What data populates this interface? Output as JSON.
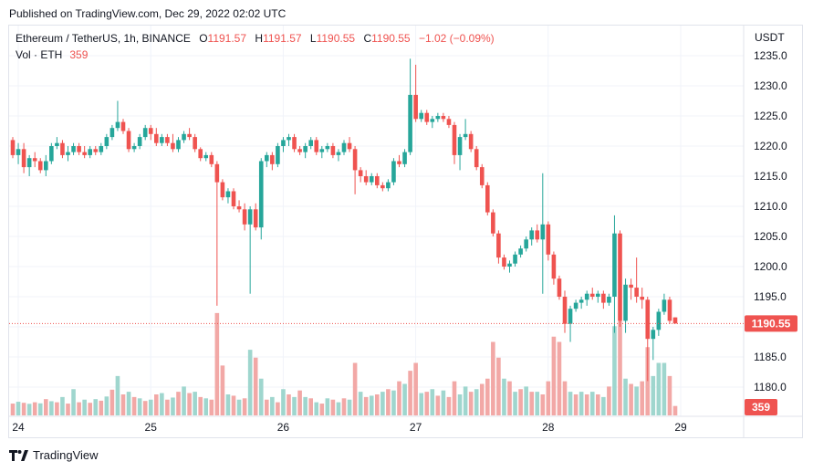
{
  "published": "Published on TradingView.com, Dec 29, 2022 02:02 UTC",
  "legend": {
    "symbol": "Ethereum / TetherUS, 1h, BINANCE",
    "open_label": "O",
    "open": "1191.57",
    "high_label": "H",
    "high": "1191.57",
    "low_label": "L",
    "low": "1190.55",
    "close_label": "C",
    "close": "1190.55",
    "change": "−1.02 (−0.09%)",
    "vol_label": "Vol · ETH",
    "vol_value": "359"
  },
  "footer": {
    "brand": "TradingView"
  },
  "colors": {
    "up": "#26a69a",
    "down": "#ef5350",
    "up_vol": "#9fd6ce",
    "down_vol": "#f2a8a6",
    "grid": "#f0f3fa"
  },
  "chart_data": {
    "type": "candlestick",
    "currency_label": "USDT",
    "y_ticks": [
      1180,
      1185,
      1190,
      1195,
      1200,
      1205,
      1210,
      1215,
      1220,
      1225,
      1230,
      1235
    ],
    "ylim": [
      1176.9,
      1237.3
    ],
    "x_ticks": [
      {
        "index": 0,
        "label": "24"
      },
      {
        "index": 24,
        "label": "25"
      },
      {
        "index": 48,
        "label": "26"
      },
      {
        "index": 72,
        "label": "27"
      },
      {
        "index": 96,
        "label": "28"
      },
      {
        "index": 120,
        "label": "29"
      }
    ],
    "last_price": "1190.55",
    "last_volume": "359",
    "candles": [
      [
        1221.0,
        1221.5,
        1218.0,
        1218.5
      ],
      [
        1218.5,
        1220.5,
        1217.0,
        1219.5
      ],
      [
        1219.5,
        1220.5,
        1215.5,
        1216.5
      ],
      [
        1216.5,
        1218.5,
        1215.0,
        1218.0
      ],
      [
        1218.0,
        1219.0,
        1216.5,
        1217.5
      ],
      [
        1217.5,
        1218.0,
        1215.5,
        1216.0
      ],
      [
        1216.0,
        1218.5,
        1215.0,
        1217.5
      ],
      [
        1217.5,
        1220.5,
        1217.0,
        1220.0
      ],
      [
        1220.0,
        1221.5,
        1219.5,
        1220.5
      ],
      [
        1220.5,
        1221.0,
        1218.0,
        1218.5
      ],
      [
        1218.5,
        1220.0,
        1217.5,
        1219.0
      ],
      [
        1219.0,
        1220.5,
        1218.5,
        1220.0
      ],
      [
        1220.0,
        1220.5,
        1218.5,
        1219.0
      ],
      [
        1219.0,
        1220.0,
        1218.0,
        1218.5
      ],
      [
        1218.5,
        1220.0,
        1218.0,
        1219.5
      ],
      [
        1219.5,
        1220.0,
        1218.5,
        1219.0
      ],
      [
        1219.0,
        1220.5,
        1218.5,
        1220.0
      ],
      [
        1220.0,
        1222.0,
        1219.5,
        1221.5
      ],
      [
        1221.5,
        1223.5,
        1221.0,
        1223.0
      ],
      [
        1223.0,
        1227.5,
        1222.5,
        1224.0
      ],
      [
        1224.0,
        1224.5,
        1222.0,
        1222.5
      ],
      [
        1222.5,
        1223.0,
        1219.0,
        1219.5
      ],
      [
        1219.5,
        1220.5,
        1219.0,
        1220.0
      ],
      [
        1220.0,
        1222.0,
        1219.5,
        1221.5
      ],
      [
        1221.5,
        1223.5,
        1221.0,
        1223.0
      ],
      [
        1223.0,
        1223.5,
        1221.0,
        1222.0
      ],
      [
        1222.0,
        1223.0,
        1220.0,
        1220.5
      ],
      [
        1220.5,
        1222.0,
        1220.0,
        1221.5
      ],
      [
        1221.5,
        1222.0,
        1220.0,
        1220.5
      ],
      [
        1220.5,
        1222.0,
        1219.0,
        1219.5
      ],
      [
        1219.5,
        1221.5,
        1219.0,
        1221.0
      ],
      [
        1221.0,
        1222.5,
        1220.5,
        1222.0
      ],
      [
        1222.0,
        1223.0,
        1221.0,
        1221.5
      ],
      [
        1221.5,
        1222.0,
        1219.0,
        1219.5
      ],
      [
        1219.5,
        1219.8,
        1217.5,
        1218.0
      ],
      [
        1218.0,
        1219.0,
        1217.5,
        1218.5
      ],
      [
        1218.5,
        1219.0,
        1216.5,
        1217.0
      ],
      [
        1217.0,
        1217.5,
        1193.5,
        1214.0
      ],
      [
        1214.0,
        1214.5,
        1211.0,
        1211.5
      ],
      [
        1211.5,
        1213.0,
        1210.5,
        1212.5
      ],
      [
        1212.5,
        1213.0,
        1209.5,
        1210.0
      ],
      [
        1210.0,
        1211.0,
        1209.0,
        1209.5
      ],
      [
        1209.5,
        1210.5,
        1206.0,
        1207.0
      ],
      [
        1207.0,
        1210.0,
        1195.5,
        1209.5
      ],
      [
        1209.5,
        1210.5,
        1206.0,
        1206.5
      ],
      [
        1206.5,
        1218.0,
        1204.5,
        1217.5
      ],
      [
        1217.5,
        1219.0,
        1216.5,
        1218.5
      ],
      [
        1218.5,
        1219.0,
        1216.0,
        1217.0
      ],
      [
        1217.0,
        1220.5,
        1216.5,
        1220.0
      ],
      [
        1220.0,
        1221.5,
        1219.0,
        1221.0
      ],
      [
        1221.0,
        1222.0,
        1220.0,
        1221.5
      ],
      [
        1221.5,
        1222.0,
        1219.0,
        1219.5
      ],
      [
        1219.5,
        1220.0,
        1218.5,
        1219.0
      ],
      [
        1219.0,
        1220.5,
        1218.0,
        1220.0
      ],
      [
        1220.0,
        1221.5,
        1219.5,
        1221.0
      ],
      [
        1221.0,
        1221.5,
        1218.5,
        1219.0
      ],
      [
        1219.0,
        1220.0,
        1218.0,
        1219.5
      ],
      [
        1219.5,
        1220.5,
        1219.0,
        1220.0
      ],
      [
        1220.0,
        1220.5,
        1218.0,
        1218.5
      ],
      [
        1218.5,
        1219.5,
        1217.5,
        1219.0
      ],
      [
        1219.0,
        1221.0,
        1218.5,
        1220.5
      ],
      [
        1220.5,
        1221.5,
        1219.0,
        1219.5
      ],
      [
        1219.5,
        1220.0,
        1212.0,
        1216.0
      ],
      [
        1216.0,
        1216.5,
        1214.0,
        1215.0
      ],
      [
        1215.0,
        1216.0,
        1213.5,
        1214.0
      ],
      [
        1214.0,
        1215.5,
        1213.5,
        1215.0
      ],
      [
        1215.0,
        1215.5,
        1213.0,
        1213.5
      ],
      [
        1213.5,
        1214.0,
        1212.5,
        1213.0
      ],
      [
        1213.0,
        1214.5,
        1212.5,
        1214.0
      ],
      [
        1214.0,
        1218.0,
        1213.5,
        1217.5
      ],
      [
        1217.5,
        1218.5,
        1216.5,
        1217.0
      ],
      [
        1217.0,
        1219.5,
        1216.5,
        1219.0
      ],
      [
        1219.0,
        1234.5,
        1218.5,
        1228.5
      ],
      [
        1228.5,
        1233.5,
        1224.0,
        1224.5
      ],
      [
        1224.5,
        1226.0,
        1224.0,
        1225.5
      ],
      [
        1225.5,
        1226.0,
        1223.5,
        1224.0
      ],
      [
        1224.0,
        1225.0,
        1223.0,
        1224.5
      ],
      [
        1224.5,
        1225.5,
        1224.0,
        1225.0
      ],
      [
        1225.0,
        1225.5,
        1224.0,
        1224.5
      ],
      [
        1224.5,
        1225.0,
        1223.0,
        1223.5
      ],
      [
        1223.5,
        1224.0,
        1217.0,
        1218.5
      ],
      [
        1218.5,
        1222.0,
        1216.0,
        1221.5
      ],
      [
        1221.5,
        1224.5,
        1221.0,
        1222.0
      ],
      [
        1222.0,
        1222.5,
        1219.0,
        1219.5
      ],
      [
        1219.5,
        1220.0,
        1216.0,
        1216.5
      ],
      [
        1216.5,
        1217.0,
        1213.0,
        1213.5
      ],
      [
        1213.5,
        1214.0,
        1208.5,
        1209.0
      ],
      [
        1209.0,
        1209.5,
        1205.0,
        1205.5
      ],
      [
        1205.5,
        1206.0,
        1200.5,
        1201.5
      ],
      [
        1201.5,
        1202.0,
        1199.5,
        1200.0
      ],
      [
        1200.0,
        1201.0,
        1199.0,
        1200.5
      ],
      [
        1200.5,
        1202.5,
        1200.0,
        1202.0
      ],
      [
        1202.0,
        1203.5,
        1201.5,
        1203.0
      ],
      [
        1203.0,
        1205.0,
        1202.5,
        1204.5
      ],
      [
        1204.5,
        1206.5,
        1203.5,
        1206.0
      ],
      [
        1206.0,
        1207.0,
        1204.0,
        1204.5
      ],
      [
        1204.5,
        1215.5,
        1195.5,
        1207.0
      ],
      [
        1207.0,
        1207.5,
        1201.0,
        1202.0
      ],
      [
        1202.0,
        1202.5,
        1197.0,
        1198.0
      ],
      [
        1198.0,
        1198.5,
        1194.5,
        1195.0
      ],
      [
        1195.0,
        1196.0,
        1189.0,
        1190.5
      ],
      [
        1190.5,
        1193.5,
        1187.5,
        1193.0
      ],
      [
        1193.0,
        1194.5,
        1192.5,
        1194.0
      ],
      [
        1194.0,
        1195.0,
        1193.0,
        1194.5
      ],
      [
        1194.5,
        1196.0,
        1193.5,
        1195.5
      ],
      [
        1195.5,
        1196.5,
        1194.5,
        1195.0
      ],
      [
        1195.0,
        1196.0,
        1194.0,
        1195.5
      ],
      [
        1195.5,
        1196.0,
        1193.0,
        1194.0
      ],
      [
        1194.0,
        1195.5,
        1193.5,
        1195.0
      ],
      [
        1195.0,
        1208.5,
        1189.0,
        1205.5
      ],
      [
        1205.5,
        1206.0,
        1190.0,
        1191.0
      ],
      [
        1191.0,
        1198.0,
        1189.0,
        1197.0
      ],
      [
        1197.0,
        1198.0,
        1194.5,
        1196.5
      ],
      [
        1196.5,
        1201.5,
        1194.0,
        1195.0
      ],
      [
        1195.0,
        1196.5,
        1193.0,
        1194.5
      ],
      [
        1194.5,
        1195.0,
        1181.0,
        1188.0
      ],
      [
        1188.0,
        1190.0,
        1184.5,
        1189.5
      ],
      [
        1189.5,
        1193.0,
        1188.5,
        1192.5
      ],
      [
        1192.5,
        1195.5,
        1192.0,
        1194.5
      ],
      [
        1194.5,
        1195.0,
        1190.5,
        1191.0
      ],
      [
        1191.57,
        1191.57,
        1190.55,
        1190.55
      ]
    ],
    "volumes": [
      [
        450,
        "down"
      ],
      [
        520,
        "up"
      ],
      [
        480,
        "down"
      ],
      [
        440,
        "up"
      ],
      [
        500,
        "down"
      ],
      [
        460,
        "up"
      ],
      [
        620,
        "down"
      ],
      [
        540,
        "up"
      ],
      [
        500,
        "down"
      ],
      [
        700,
        "up"
      ],
      [
        450,
        "down"
      ],
      [
        1000,
        "up"
      ],
      [
        500,
        "down"
      ],
      [
        600,
        "up"
      ],
      [
        480,
        "down"
      ],
      [
        620,
        "up"
      ],
      [
        560,
        "down"
      ],
      [
        720,
        "up"
      ],
      [
        980,
        "down"
      ],
      [
        1500,
        "up"
      ],
      [
        800,
        "down"
      ],
      [
        900,
        "up"
      ],
      [
        700,
        "down"
      ],
      [
        650,
        "up"
      ],
      [
        550,
        "down"
      ],
      [
        600,
        "up"
      ],
      [
        800,
        "down"
      ],
      [
        850,
        "up"
      ],
      [
        600,
        "down"
      ],
      [
        680,
        "up"
      ],
      [
        900,
        "down"
      ],
      [
        1100,
        "up"
      ],
      [
        850,
        "down"
      ],
      [
        900,
        "up"
      ],
      [
        700,
        "down"
      ],
      [
        650,
        "up"
      ],
      [
        600,
        "down"
      ],
      [
        3900,
        "down"
      ],
      [
        1900,
        "down"
      ],
      [
        800,
        "up"
      ],
      [
        750,
        "down"
      ],
      [
        600,
        "up"
      ],
      [
        650,
        "down"
      ],
      [
        2500,
        "up"
      ],
      [
        2200,
        "down"
      ],
      [
        1400,
        "up"
      ],
      [
        600,
        "down"
      ],
      [
        700,
        "up"
      ],
      [
        500,
        "down"
      ],
      [
        1000,
        "up"
      ],
      [
        800,
        "down"
      ],
      [
        700,
        "up"
      ],
      [
        950,
        "down"
      ],
      [
        700,
        "up"
      ],
      [
        650,
        "down"
      ],
      [
        500,
        "up"
      ],
      [
        450,
        "down"
      ],
      [
        650,
        "up"
      ],
      [
        600,
        "down"
      ],
      [
        500,
        "up"
      ],
      [
        650,
        "down"
      ],
      [
        600,
        "up"
      ],
      [
        2000,
        "down"
      ],
      [
        900,
        "up"
      ],
      [
        700,
        "down"
      ],
      [
        750,
        "up"
      ],
      [
        800,
        "down"
      ],
      [
        900,
        "up"
      ],
      [
        1000,
        "down"
      ],
      [
        950,
        "up"
      ],
      [
        1300,
        "down"
      ],
      [
        1200,
        "up"
      ],
      [
        1700,
        "down"
      ],
      [
        2000,
        "down"
      ],
      [
        850,
        "up"
      ],
      [
        900,
        "down"
      ],
      [
        1000,
        "up"
      ],
      [
        750,
        "down"
      ],
      [
        950,
        "up"
      ],
      [
        700,
        "down"
      ],
      [
        1300,
        "down"
      ],
      [
        800,
        "up"
      ],
      [
        1100,
        "up"
      ],
      [
        900,
        "down"
      ],
      [
        1000,
        "up"
      ],
      [
        1200,
        "down"
      ],
      [
        1400,
        "down"
      ],
      [
        2800,
        "down"
      ],
      [
        2200,
        "down"
      ],
      [
        1400,
        "up"
      ],
      [
        1300,
        "down"
      ],
      [
        900,
        "up"
      ],
      [
        1000,
        "down"
      ],
      [
        1100,
        "up"
      ],
      [
        900,
        "down"
      ],
      [
        900,
        "up"
      ],
      [
        800,
        "down"
      ],
      [
        1300,
        "down"
      ],
      [
        3000,
        "down"
      ],
      [
        2800,
        "down"
      ],
      [
        1300,
        "down"
      ],
      [
        900,
        "up"
      ],
      [
        800,
        "down"
      ],
      [
        900,
        "up"
      ],
      [
        800,
        "down"
      ],
      [
        900,
        "up"
      ],
      [
        800,
        "down"
      ],
      [
        700,
        "up"
      ],
      [
        1100,
        "down"
      ],
      [
        3400,
        "up"
      ],
      [
        3600,
        "down"
      ],
      [
        1400,
        "up"
      ],
      [
        1200,
        "down"
      ],
      [
        1100,
        "up"
      ],
      [
        1300,
        "down"
      ],
      [
        2600,
        "down"
      ],
      [
        1500,
        "up"
      ],
      [
        2000,
        "up"
      ],
      [
        2000,
        "up"
      ],
      [
        1500,
        "down"
      ],
      [
        359,
        "down"
      ]
    ]
  }
}
